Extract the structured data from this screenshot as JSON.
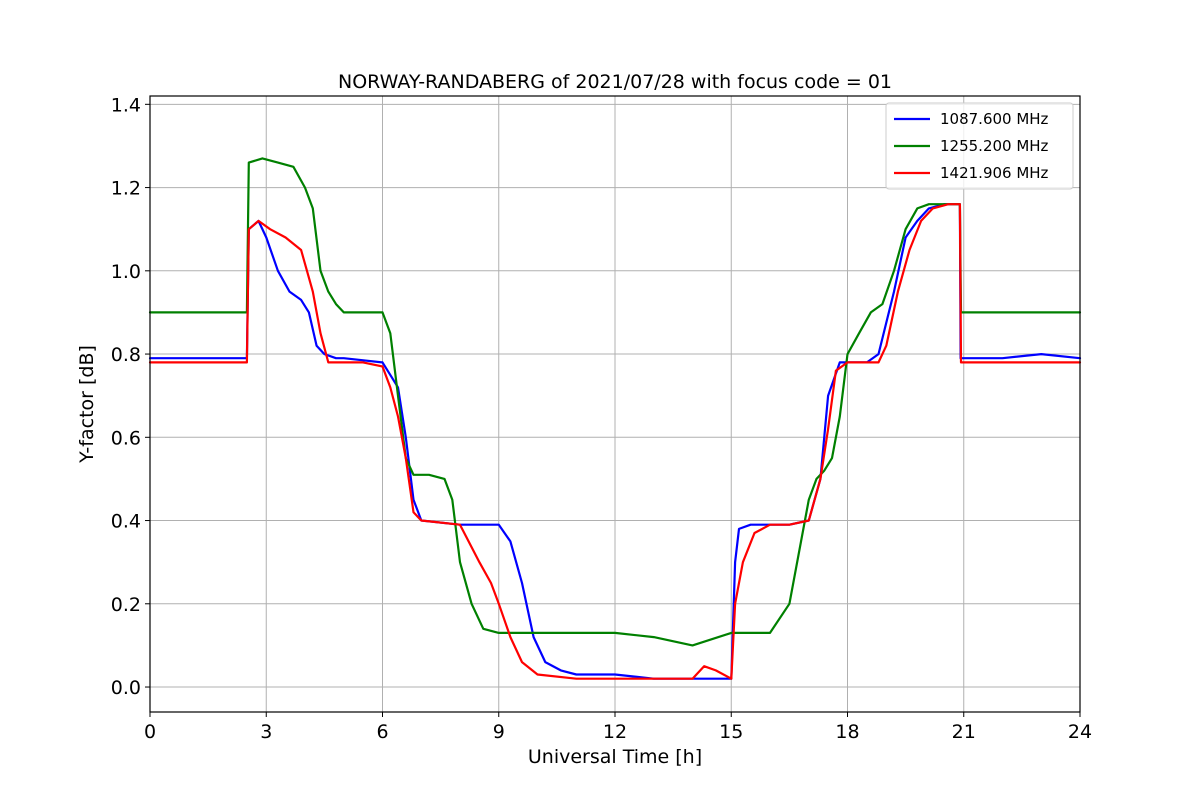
{
  "chart_data": {
    "type": "line",
    "title": "NORWAY-RANDABERG of 2021/07/28 with focus code = 01",
    "xlabel": "Universal Time [h]",
    "ylabel": "Y-factor [dB]",
    "xlim": [
      0,
      24
    ],
    "ylim": [
      -0.06,
      1.42
    ],
    "xticks": [
      0,
      3,
      6,
      9,
      12,
      15,
      18,
      21,
      24
    ],
    "xtick_labels": [
      "0",
      "3",
      "6",
      "9",
      "12",
      "15",
      "18",
      "21",
      "24"
    ],
    "yticks": [
      0.0,
      0.2,
      0.4,
      0.6,
      0.8,
      1.0,
      1.2,
      1.4
    ],
    "ytick_labels": [
      "0.0",
      "0.2",
      "0.4",
      "0.6",
      "0.8",
      "1.0",
      "1.2",
      "1.4"
    ],
    "grid": true,
    "legend_position": "top-right",
    "series": [
      {
        "name": "1087.600 MHz",
        "color": "#0000ff",
        "x": [
          0,
          2.5,
          2.55,
          2.8,
          3.0,
          3.3,
          3.6,
          3.9,
          4.1,
          4.3,
          4.5,
          4.8,
          5.0,
          6.0,
          6.2,
          6.4,
          6.6,
          6.8,
          7.0,
          8.0,
          9.0,
          9.3,
          9.6,
          9.9,
          10.2,
          10.6,
          11.0,
          12.0,
          13.0,
          14.0,
          15.0,
          15.1,
          15.2,
          15.5,
          16.0,
          16.5,
          17.0,
          17.3,
          17.5,
          17.8,
          18.0,
          18.5,
          18.8,
          19.2,
          19.5,
          19.8,
          20.1,
          20.5,
          20.9,
          20.92,
          21.0,
          22.0,
          23.0,
          24.0
        ],
        "y": [
          0.79,
          0.79,
          1.1,
          1.12,
          1.08,
          1.0,
          0.95,
          0.93,
          0.9,
          0.82,
          0.8,
          0.79,
          0.79,
          0.78,
          0.75,
          0.72,
          0.6,
          0.45,
          0.4,
          0.39,
          0.39,
          0.35,
          0.25,
          0.12,
          0.06,
          0.04,
          0.03,
          0.03,
          0.02,
          0.02,
          0.02,
          0.3,
          0.38,
          0.39,
          0.39,
          0.39,
          0.4,
          0.5,
          0.7,
          0.78,
          0.78,
          0.78,
          0.8,
          0.95,
          1.08,
          1.12,
          1.15,
          1.16,
          1.16,
          0.79,
          0.79,
          0.79,
          0.8,
          0.79
        ]
      },
      {
        "name": "1255.200 MHz",
        "color": "#008000",
        "x": [
          0,
          2.5,
          2.55,
          2.9,
          3.3,
          3.7,
          4.0,
          4.2,
          4.4,
          4.6,
          4.8,
          5.0,
          6.0,
          6.2,
          6.4,
          6.6,
          6.8,
          7.2,
          7.6,
          7.8,
          8.0,
          8.3,
          8.6,
          9.0,
          9.5,
          10.0,
          11.0,
          12.0,
          13.0,
          14.0,
          15.0,
          15.5,
          16.0,
          16.5,
          17.0,
          17.2,
          17.4,
          17.6,
          17.8,
          18.0,
          18.3,
          18.6,
          18.9,
          19.2,
          19.5,
          19.8,
          20.1,
          20.5,
          20.9,
          20.93,
          21.0,
          22.0,
          23.0,
          24.0
        ],
        "y": [
          0.9,
          0.9,
          1.26,
          1.27,
          1.26,
          1.25,
          1.2,
          1.15,
          1.0,
          0.95,
          0.92,
          0.9,
          0.9,
          0.85,
          0.7,
          0.55,
          0.51,
          0.51,
          0.5,
          0.45,
          0.3,
          0.2,
          0.14,
          0.13,
          0.13,
          0.13,
          0.13,
          0.13,
          0.12,
          0.1,
          0.13,
          0.13,
          0.13,
          0.2,
          0.45,
          0.5,
          0.52,
          0.55,
          0.65,
          0.8,
          0.85,
          0.9,
          0.92,
          1.0,
          1.1,
          1.15,
          1.16,
          1.16,
          1.16,
          0.9,
          0.9,
          0.9,
          0.9,
          0.9
        ]
      },
      {
        "name": "1421.906 MHz",
        "color": "#ff0000",
        "x": [
          0,
          2.5,
          2.55,
          2.8,
          3.1,
          3.5,
          3.9,
          4.2,
          4.4,
          4.6,
          5.0,
          5.5,
          6.0,
          6.2,
          6.4,
          6.6,
          6.8,
          7.0,
          8.0,
          8.5,
          8.8,
          9.0,
          9.3,
          9.6,
          10.0,
          11.0,
          12.0,
          13.0,
          14.0,
          14.3,
          14.6,
          15.0,
          15.1,
          15.3,
          15.6,
          16.0,
          16.5,
          17.0,
          17.3,
          17.5,
          17.7,
          18.0,
          18.5,
          18.8,
          19.0,
          19.3,
          19.6,
          19.9,
          20.2,
          20.6,
          20.9,
          20.93,
          21.0,
          22.0,
          23.0,
          24.0
        ],
        "y": [
          0.78,
          0.78,
          1.1,
          1.12,
          1.1,
          1.08,
          1.05,
          0.95,
          0.85,
          0.78,
          0.78,
          0.78,
          0.77,
          0.72,
          0.65,
          0.55,
          0.42,
          0.4,
          0.39,
          0.3,
          0.25,
          0.2,
          0.12,
          0.06,
          0.03,
          0.02,
          0.02,
          0.02,
          0.02,
          0.05,
          0.04,
          0.02,
          0.2,
          0.3,
          0.37,
          0.39,
          0.39,
          0.4,
          0.5,
          0.62,
          0.76,
          0.78,
          0.78,
          0.78,
          0.82,
          0.95,
          1.05,
          1.12,
          1.15,
          1.16,
          1.16,
          0.78,
          0.78,
          0.78,
          0.78,
          0.78
        ]
      }
    ]
  }
}
